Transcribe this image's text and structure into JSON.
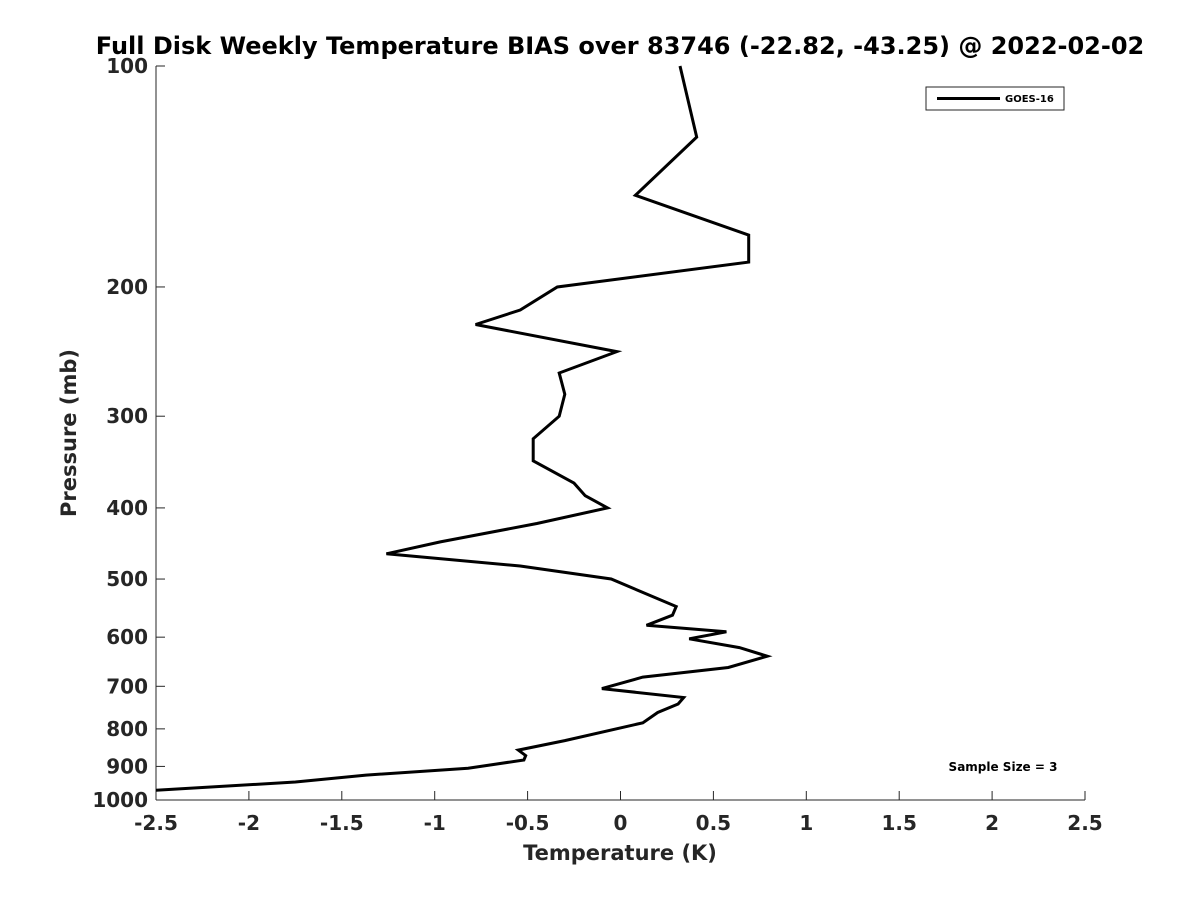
{
  "chart_data": {
    "type": "line",
    "title": "Full Disk Weekly Temperature BIAS over 83746 (-22.82, -43.25) @ 2022-02-02",
    "xlabel": "Temperature (K)",
    "ylabel": "Pressure (mb)",
    "xlim": [
      -2.5,
      2.5
    ],
    "ylim": [
      100,
      1000
    ],
    "y_scale": "log",
    "y_reversed": true,
    "xticks": [
      -2.5,
      -2,
      -1.5,
      -1,
      -0.5,
      0,
      0.5,
      1,
      1.5,
      2,
      2.5
    ],
    "xtick_labels": [
      "-2.5",
      "-2",
      "-1.5",
      "-1",
      "-0.5",
      "0",
      "0.5",
      "1",
      "1.5",
      "2",
      "2.5"
    ],
    "yticks": [
      100,
      200,
      300,
      400,
      500,
      600,
      700,
      800,
      900,
      1000
    ],
    "ytick_labels": [
      "100",
      "200",
      "300",
      "400",
      "500",
      "600",
      "700",
      "800",
      "900",
      "1000"
    ],
    "grid": false,
    "legend_position": "top-right",
    "annotation": "Sample Size = 3",
    "series": [
      {
        "name": "GOES-16",
        "color": "#000000",
        "points": [
          [
            0.32,
            100
          ],
          [
            0.41,
            125
          ],
          [
            0.08,
            150
          ],
          [
            0.69,
            170
          ],
          [
            0.69,
            185
          ],
          [
            -0.34,
            200
          ],
          [
            -0.54,
            215
          ],
          [
            -0.78,
            225
          ],
          [
            -0.02,
            245
          ],
          [
            -0.33,
            262
          ],
          [
            -0.3,
            280
          ],
          [
            -0.33,
            300
          ],
          [
            -0.47,
            322
          ],
          [
            -0.47,
            345
          ],
          [
            -0.25,
            370
          ],
          [
            -0.19,
            385
          ],
          [
            -0.07,
            400
          ],
          [
            -0.45,
            420
          ],
          [
            -0.97,
            445
          ],
          [
            -1.26,
            462
          ],
          [
            -0.54,
            480
          ],
          [
            -0.05,
            500
          ],
          [
            0.3,
            545
          ],
          [
            0.28,
            560
          ],
          [
            0.14,
            578
          ],
          [
            0.57,
            590
          ],
          [
            0.37,
            603
          ],
          [
            0.64,
            620
          ],
          [
            0.79,
            637
          ],
          [
            0.58,
            660
          ],
          [
            0.12,
            680
          ],
          [
            -0.1,
            705
          ],
          [
            0.34,
            725
          ],
          [
            0.31,
            740
          ],
          [
            0.2,
            760
          ],
          [
            0.12,
            785
          ],
          [
            -0.3,
            830
          ],
          [
            -0.55,
            855
          ],
          [
            -0.51,
            870
          ],
          [
            -0.52,
            882
          ],
          [
            -0.82,
            905
          ],
          [
            -1.37,
            925
          ],
          [
            -1.75,
            945
          ],
          [
            -2.5,
            970
          ]
        ]
      }
    ]
  }
}
